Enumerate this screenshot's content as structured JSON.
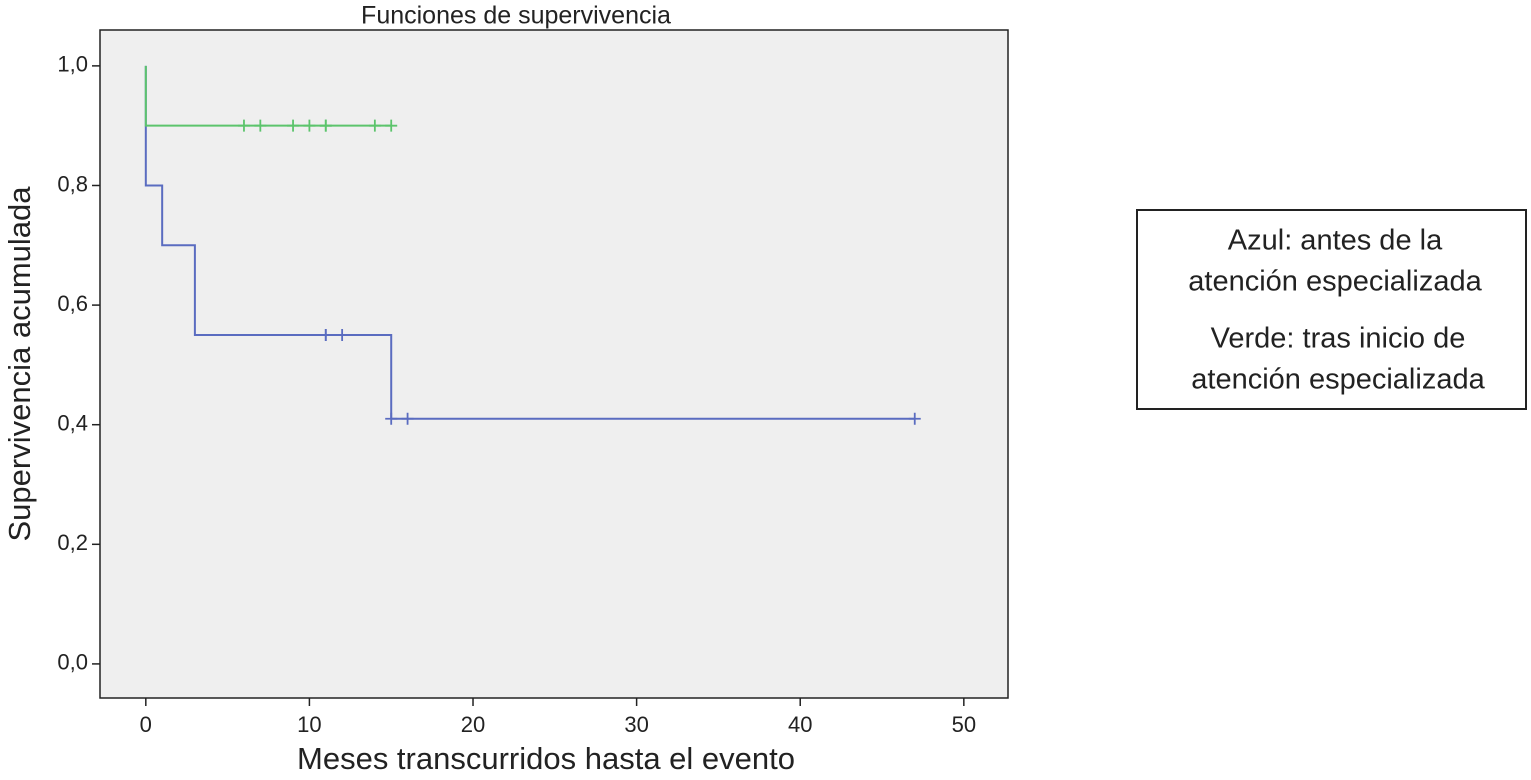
{
  "chart_data": {
    "type": "line",
    "title": "Funciones de supervivencia",
    "x_label": "Meses transcurridos hasta el evento",
    "y_label": "Supervivencia acumulada",
    "xlim": [
      -2.8,
      52.7
    ],
    "ylim": [
      -0.057,
      1.06
    ],
    "xticks": [
      0,
      10,
      20,
      30,
      40,
      50
    ],
    "yticks": [
      {
        "value": 0,
        "label": "0,0"
      },
      {
        "value": 0.2,
        "label": "0,2"
      },
      {
        "value": 0.4,
        "label": "0,4"
      },
      {
        "value": 0.6,
        "label": "0,6"
      },
      {
        "value": 0.8,
        "label": "0,8"
      },
      {
        "value": 1,
        "label": "1,0"
      }
    ],
    "series": [
      {
        "color": "#5a6cc0",
        "x": [
          0,
          0,
          1,
          1,
          3,
          3,
          15,
          15,
          47
        ],
        "values": [
          1.0,
          0.8,
          0.8,
          0.7,
          0.7,
          0.55,
          0.55,
          0.41,
          0.41
        ],
        "censor_x": [
          11,
          11,
          12,
          15,
          16,
          47
        ],
        "censor_values": [
          0.55,
          0.55,
          0.55,
          0.41,
          0.41,
          0.41
        ]
      },
      {
        "color": "#5cc46c",
        "x": [
          0,
          0,
          15
        ],
        "values": [
          1.0,
          0.9,
          0.9
        ],
        "censor_x": [
          6,
          7,
          9,
          10,
          11,
          11,
          14,
          15
        ],
        "censor_values": [
          0.9,
          0.9,
          0.9,
          0.9,
          0.9,
          0.9,
          0.9,
          0.9
        ]
      }
    ],
    "annotations": [
      "Azul: antes de la",
      "atención especializada",
      "Verde: tras inicio de",
      "atención especializada"
    ]
  }
}
